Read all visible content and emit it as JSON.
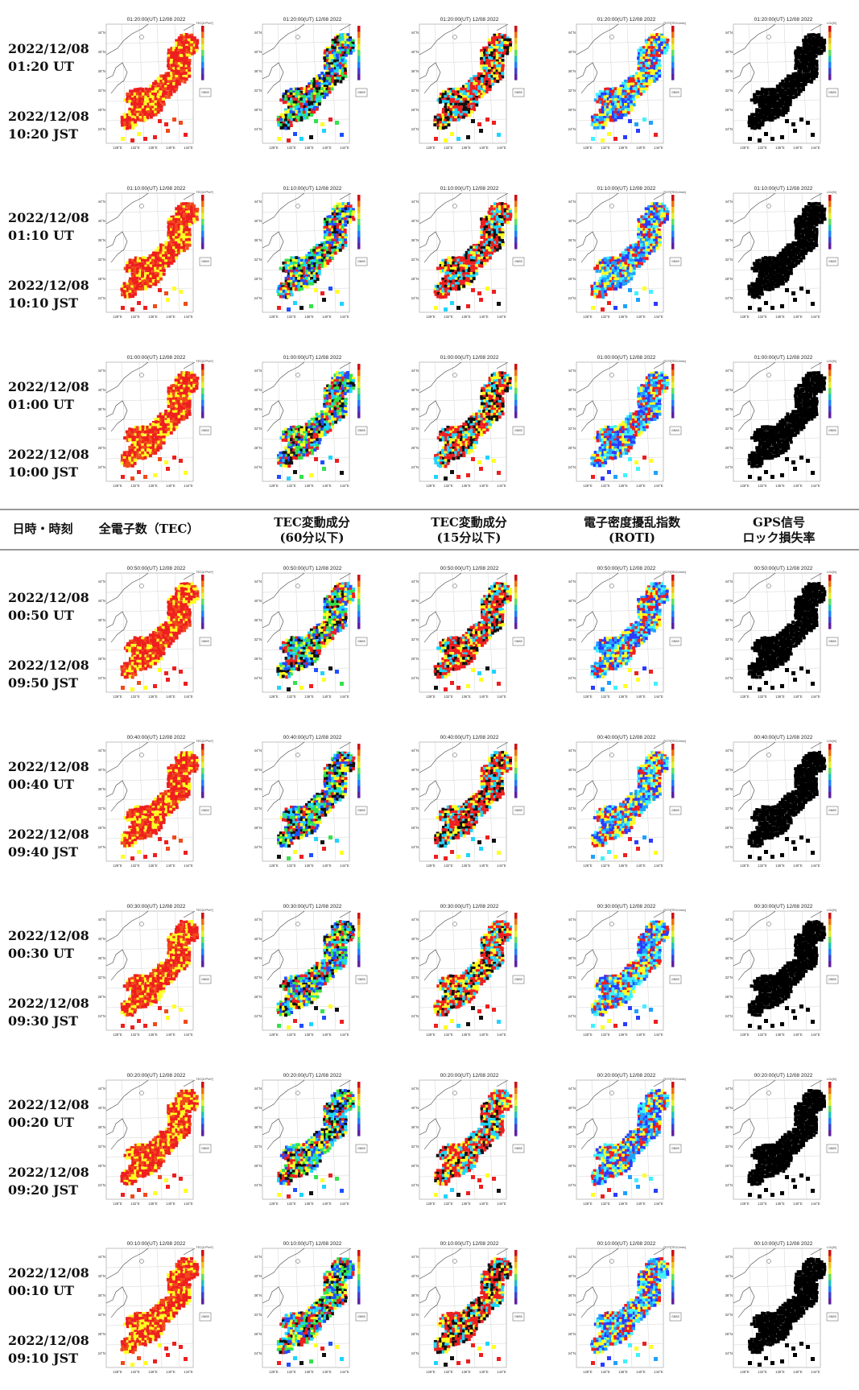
{
  "header": {
    "columns": [
      {
        "lines": [
          "日時・時刻"
        ]
      },
      {
        "lines": [
          "全電子数（TEC）"
        ]
      },
      {
        "lines": [
          "TEC変動成分",
          "(60分以下)"
        ]
      },
      {
        "lines": [
          "TEC変動成分",
          "(15分以下)"
        ]
      },
      {
        "lines": [
          "電子密度擾乱指数",
          "(ROTI)"
        ]
      },
      {
        "lines": [
          "GPS信号",
          "ロック損失率"
        ]
      }
    ]
  },
  "map_axes": {
    "lat_ticks": [
      "44°N",
      "40°N",
      "36°N",
      "32°N",
      "28°N",
      "24°N"
    ],
    "lon_ticks": [
      "128°E",
      "132°E",
      "136°E",
      "140°E",
      "144°E"
    ],
    "box_label": "GNSS"
  },
  "colorbar_titles": [
    "TEC[10¹⁶/m²]",
    "",
    "",
    "ROTI[TECU/min]",
    "LOL[%]"
  ],
  "column_colors": [
    {
      "main": "#ee1f1f",
      "mix": [
        "#ee1f1f",
        "#ee1f1f",
        "#f04a1a",
        "#ffff22"
      ]
    },
    {
      "main": "#34e24a",
      "mix": [
        "#34e24a",
        "#ffff22",
        "#ee1f1f",
        "#1f4fff",
        "#1fd4ff",
        "#111111"
      ]
    },
    {
      "main": "#111111",
      "mix": [
        "#111111",
        "#ee1f1f",
        "#ee1f1f",
        "#ffff22",
        "#1fd4ff"
      ]
    },
    {
      "main": "#2a3cff",
      "mix": [
        "#2a3cff",
        "#1fa0ff",
        "#3ef2ff",
        "#ffff22",
        "#ee1f1f"
      ]
    },
    {
      "main": "#000000",
      "mix": [
        "#000000"
      ]
    }
  ],
  "rows": [
    {
      "map_title": "01:20:00(UT) 12/08 2022",
      "ut_date": "2022/12/08",
      "ut_time": "01:20 UT",
      "jst_date": "2022/12/08",
      "jst_time": "10:20 JST"
    },
    {
      "map_title": "01:10:00(UT) 12/08 2022",
      "ut_date": "2022/12/08",
      "ut_time": "01:10 UT",
      "jst_date": "2022/12/08",
      "jst_time": "10:10 JST"
    },
    {
      "map_title": "01:00:00(UT) 12/08 2022",
      "ut_date": "2022/12/08",
      "ut_time": "01:00 UT",
      "jst_date": "2022/12/08",
      "jst_time": "10:00 JST"
    },
    {
      "map_title": "00:50:00(UT) 12/08 2022",
      "ut_date": "2022/12/08",
      "ut_time": "00:50 UT",
      "jst_date": "2022/12/08",
      "jst_time": "09:50 JST"
    },
    {
      "map_title": "00:40:00(UT) 12/08 2022",
      "ut_date": "2022/12/08",
      "ut_time": "00:40 UT",
      "jst_date": "2022/12/08",
      "jst_time": "09:40 JST"
    },
    {
      "map_title": "00:30:00(UT) 12/08 2022",
      "ut_date": "2022/12/08",
      "ut_time": "00:30 UT",
      "jst_date": "2022/12/08",
      "jst_time": "09:30 JST"
    },
    {
      "map_title": "00:20:00(UT) 12/08 2022",
      "ut_date": "2022/12/08",
      "ut_time": "00:20 UT",
      "jst_date": "2022/12/08",
      "jst_time": "09:20 JST"
    },
    {
      "map_title": "00:10:00(UT) 12/08 2022",
      "ut_date": "2022/12/08",
      "ut_time": "00:10 UT",
      "jst_date": "2022/12/08",
      "jst_time": "09:10 JST"
    }
  ]
}
